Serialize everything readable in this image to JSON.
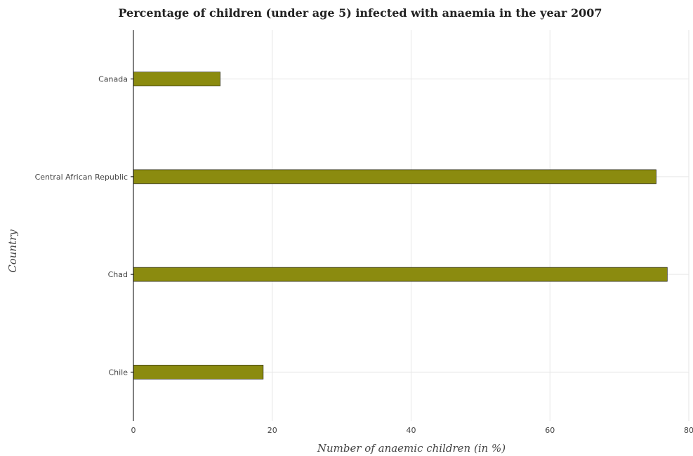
{
  "chart_data": {
    "type": "bar",
    "orientation": "horizontal",
    "title": "Percentage of children (under age 5) infected with anaemia in the year 2007",
    "xlabel": "Number of anaemic children (in %)",
    "ylabel": "Country",
    "categories": [
      "Canada",
      "Central African Republic",
      "Chad",
      "Chile"
    ],
    "values": [
      12.5,
      75.3,
      76.9,
      18.7
    ],
    "xlim": [
      0,
      80
    ],
    "xticks": [
      0,
      20,
      40,
      60,
      80
    ],
    "xtick_labels": [
      "0",
      "20",
      "40",
      "60",
      "80"
    ],
    "grid": true,
    "bar_color": "#8b8b0f"
  }
}
